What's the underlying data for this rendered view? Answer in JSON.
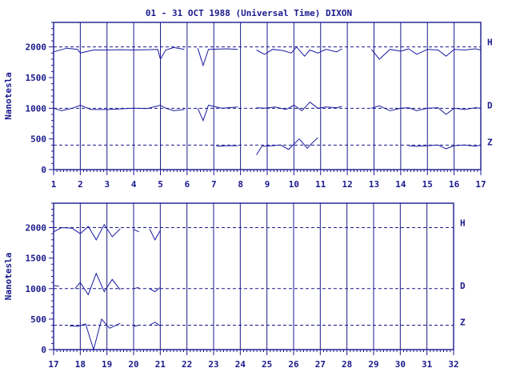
{
  "chart_data": {
    "type": "line",
    "title": "01 - 31 OCT 1988 (Universal Time) DIXON",
    "ylabel": "Nanotesla",
    "ylim": [
      0,
      2400
    ],
    "yticks": [
      "0",
      "500",
      "1000",
      "1500",
      "2000"
    ],
    "baseline_labels": [
      {
        "name": "H",
        "value": 2000
      },
      {
        "name": "D",
        "value": 1000
      },
      {
        "name": "Z",
        "value": 400
      }
    ],
    "panels": [
      {
        "xlim": [
          1,
          17
        ],
        "xticks": [
          "1",
          "2",
          "3",
          "4",
          "5",
          "6",
          "7",
          "8",
          "9",
          "10",
          "11",
          "12",
          "13",
          "14",
          "15",
          "16",
          "17"
        ],
        "series": [
          {
            "name": "H",
            "segments": [
              [
                [
                  1,
                  1920
                ],
                [
                  1.5,
                  1980
                ],
                [
                  1.9,
                  1960
                ],
                [
                  2,
                  1900
                ],
                [
                  2.5,
                  1950
                ],
                [
                  3,
                  1950
                ],
                [
                  3.5,
                  1955
                ],
                [
                  4,
                  1950
                ],
                [
                  4.5,
                  1955
                ],
                [
                  4.9,
                  1960
                ],
                [
                  5,
                  1800
                ],
                [
                  5.2,
                  1950
                ],
                [
                  5.5,
                  1990
                ],
                [
                  5.9,
                  1960
                ]
              ],
              [
                [
                  6.4,
                  1980
                ],
                [
                  6.6,
                  1700
                ],
                [
                  6.8,
                  1960
                ],
                [
                  7.5,
                  1970
                ],
                [
                  7.9,
                  1960
                ]
              ],
              [
                [
                  8.6,
                  1950
                ],
                [
                  8.9,
                  1880
                ],
                [
                  9.2,
                  1960
                ],
                [
                  9.6,
                  1940
                ],
                [
                  9.9,
                  1900
                ],
                [
                  10.1,
                  2000
                ],
                [
                  10.4,
                  1850
                ],
                [
                  10.6,
                  1950
                ],
                [
                  10.9,
                  1900
                ],
                [
                  11.2,
                  1960
                ],
                [
                  11.6,
                  1920
                ],
                [
                  11.8,
                  1970
                ]
              ],
              [
                [
                  12.9,
                  1960
                ],
                [
                  13.2,
                  1800
                ],
                [
                  13.6,
                  1960
                ],
                [
                  14,
                  1930
                ],
                [
                  14.3,
                  1970
                ],
                [
                  14.6,
                  1880
                ],
                [
                  15,
                  1960
                ],
                [
                  15.4,
                  1950
                ],
                [
                  15.7,
                  1850
                ],
                [
                  16,
                  1960
                ],
                [
                  16.4,
                  1950
                ],
                [
                  16.8,
                  1970
                ],
                [
                  17,
                  1950
                ]
              ]
            ]
          },
          {
            "name": "D",
            "segments": [
              [
                [
                  1,
                  1000
                ],
                [
                  1.3,
                  960
                ],
                [
                  1.7,
                  1000
                ],
                [
                  2,
                  1050
                ],
                [
                  2.4,
                  980
                ],
                [
                  3,
                  980
                ],
                [
                  3.5,
                  990
                ],
                [
                  4,
                  1000
                ],
                [
                  4.5,
                  995
                ],
                [
                  5,
                  1050
                ],
                [
                  5.2,
                  1000
                ],
                [
                  5.5,
                  960
                ],
                [
                  5.9,
                  980
                ]
              ],
              [
                [
                  6.4,
                  1000
                ],
                [
                  6.6,
                  800
                ],
                [
                  6.8,
                  1050
                ],
                [
                  7.3,
                  1000
                ],
                [
                  7.9,
                  1020
                ]
              ],
              [
                [
                  8.6,
                  1010
                ],
                [
                  8.9,
                  1000
                ],
                [
                  9.3,
                  1020
                ],
                [
                  9.7,
                  980
                ],
                [
                  10,
                  1050
                ],
                [
                  10.3,
                  960
                ],
                [
                  10.6,
                  1100
                ],
                [
                  10.9,
                  1000
                ],
                [
                  11.2,
                  1020
                ],
                [
                  11.6,
                  1010
                ],
                [
                  11.8,
                  1030
                ]
              ],
              [
                [
                  12.9,
                  1000
                ],
                [
                  13.2,
                  1040
                ],
                [
                  13.6,
                  960
                ],
                [
                  14,
                  1000
                ],
                [
                  14.3,
                  1010
                ],
                [
                  14.6,
                  960
                ],
                [
                  15,
                  1000
                ],
                [
                  15.4,
                  1010
                ],
                [
                  15.7,
                  900
                ],
                [
                  16,
                  1000
                ],
                [
                  16.4,
                  980
                ],
                [
                  16.8,
                  1010
                ],
                [
                  17,
                  1000
                ]
              ]
            ]
          },
          {
            "name": "Z",
            "segments": [
              [
                [
                  7.1,
                  380
                ],
                [
                  7.5,
                  390
                ],
                [
                  7.9,
                  390
                ]
              ],
              [
                [
                  8.6,
                  240
                ],
                [
                  8.8,
                  380
                ],
                [
                  9.2,
                  390
                ],
                [
                  9.5,
                  400
                ],
                [
                  9.8,
                  330
                ],
                [
                  10.2,
                  500
                ],
                [
                  10.5,
                  350
                ],
                [
                  10.7,
                  440
                ],
                [
                  10.9,
                  520
                ]
              ],
              [
                [
                  14.3,
                  390
                ],
                [
                  14.6,
                  380
                ],
                [
                  15,
                  390
                ],
                [
                  15.4,
                  400
                ],
                [
                  15.7,
                  340
                ],
                [
                  16,
                  390
                ],
                [
                  16.4,
                  400
                ],
                [
                  16.8,
                  380
                ],
                [
                  17,
                  400
                ]
              ]
            ]
          }
        ]
      },
      {
        "xlim": [
          17,
          32
        ],
        "xticks": [
          "17",
          "18",
          "19",
          "20",
          "21",
          "22",
          "23",
          "24",
          "25",
          "26",
          "27",
          "28",
          "29",
          "30",
          "31",
          "32"
        ],
        "series": [
          {
            "name": "H",
            "segments": [
              [
                [
                  17,
                  1930
                ],
                [
                  17.3,
                  2000
                ],
                [
                  17.7,
                  1990
                ],
                [
                  18,
                  1900
                ],
                [
                  18.3,
                  2020
                ],
                [
                  18.6,
                  1800
                ],
                [
                  18.9,
                  2050
                ],
                [
                  19.2,
                  1850
                ],
                [
                  19.5,
                  1980
                ]
              ],
              [
                [
                  20,
                  1970
                ],
                [
                  20.2,
                  1930
                ]
              ],
              [
                [
                  20.6,
                  1980
                ],
                [
                  20.8,
                  1800
                ],
                [
                  21,
                  1950
                ]
              ]
            ]
          },
          {
            "name": "D",
            "segments": [
              [
                [
                  17,
                  1050
                ],
                [
                  17.2,
                  1040
                ]
              ],
              [
                [
                  17.8,
                  1000
                ],
                [
                  18,
                  1100
                ],
                [
                  18.3,
                  900
                ],
                [
                  18.6,
                  1250
                ],
                [
                  18.9,
                  950
                ],
                [
                  19.2,
                  1150
                ],
                [
                  19.5,
                  980
                ]
              ],
              [
                [
                  20,
                  1000
                ],
                [
                  20.2,
                  1020
                ]
              ],
              [
                [
                  20.6,
                  1000
                ],
                [
                  20.8,
                  950
                ],
                [
                  21,
                  1020
                ]
              ]
            ]
          },
          {
            "name": "Z",
            "segments": [
              [
                [
                  17.6,
                  390
                ],
                [
                  17.9,
                  380
                ],
                [
                  18.2,
                  420
                ],
                [
                  18.5,
                  0
                ],
                [
                  18.8,
                  500
                ],
                [
                  19.1,
                  350
                ],
                [
                  19.5,
                  430
                ]
              ],
              [
                [
                  20,
                  380
                ],
                [
                  20.2,
                  400
                ]
              ],
              [
                [
                  20.6,
                  400
                ],
                [
                  20.8,
                  450
                ],
                [
                  21,
                  390
                ]
              ]
            ]
          }
        ]
      }
    ]
  }
}
